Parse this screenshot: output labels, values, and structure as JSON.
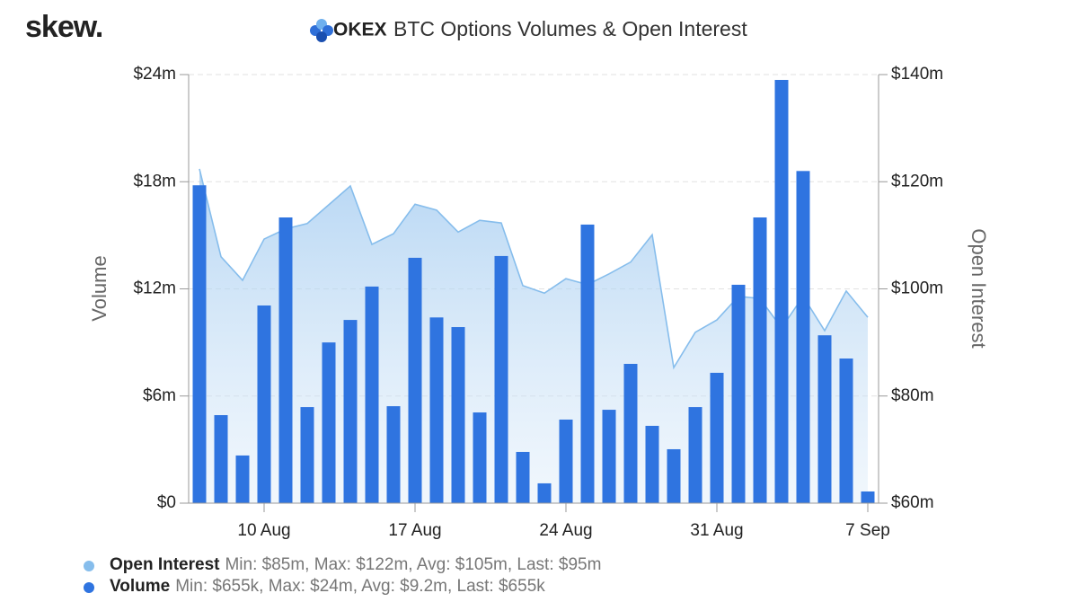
{
  "chart_data": {
    "type": "bar",
    "brand": "skew.",
    "logo_text": "OKEX",
    "title": "BTC Options Volumes & Open Interest",
    "y_label": "Volume",
    "y2_label": "Open Interest",
    "categories": [
      null,
      null,
      null,
      "10 Aug",
      null,
      null,
      null,
      null,
      null,
      null,
      "17 Aug",
      null,
      null,
      null,
      null,
      null,
      null,
      "24 Aug",
      null,
      null,
      null,
      null,
      null,
      null,
      "31 Aug",
      null,
      null,
      null,
      null,
      null,
      null,
      "7 Sep"
    ],
    "series": [
      {
        "name": "Open Interest",
        "type": "area",
        "axis": "y2",
        "color": "#86bdec",
        "stats": "Min: $85m, Max: $122m, Avg: $105m, Last: $95m",
        "values": [
          122.4,
          106.0,
          101.6,
          109.3,
          111.2,
          112.2,
          115.7,
          119.2,
          108.3,
          110.3,
          115.8,
          114.7,
          110.6,
          112.8,
          112.3,
          100.6,
          99.2,
          101.9,
          100.8,
          102.8,
          105.0,
          110.1,
          85.3,
          91.9,
          94.2,
          98.6,
          98.2,
          92.7,
          98.6,
          92.2,
          99.6,
          94.7
        ]
      },
      {
        "name": "Volume",
        "type": "bar",
        "axis": "y",
        "color": "#2f74e0",
        "stats": "Min: $655k, Max: $24m, Avg: $9.2m, Last: $655k",
        "values": [
          17.8,
          4.93,
          2.67,
          11.07,
          16.0,
          5.38,
          9.0,
          10.26,
          12.13,
          5.43,
          13.74,
          10.4,
          9.86,
          5.08,
          13.84,
          2.87,
          1.11,
          4.68,
          15.6,
          5.23,
          7.8,
          4.33,
          3.02,
          5.38,
          7.3,
          12.23,
          16.0,
          23.7,
          18.6,
          9.4,
          8.1,
          0.655
        ]
      }
    ],
    "ylim": [
      0,
      24
    ],
    "yticks": [
      {
        "value": 0,
        "label": "$0"
      },
      {
        "value": 6,
        "label": "$6m"
      },
      {
        "value": 12,
        "label": "$12m"
      },
      {
        "value": 18,
        "label": "$18m"
      },
      {
        "value": 24,
        "label": "$24m"
      }
    ],
    "y2lim": [
      60,
      140
    ],
    "y2ticks": [
      {
        "value": 60,
        "label": "$60m"
      },
      {
        "value": 80,
        "label": "$80m"
      },
      {
        "value": 100,
        "label": "$100m"
      },
      {
        "value": 120,
        "label": "$120m"
      },
      {
        "value": 140,
        "label": "$140m"
      }
    ],
    "grid": true
  }
}
